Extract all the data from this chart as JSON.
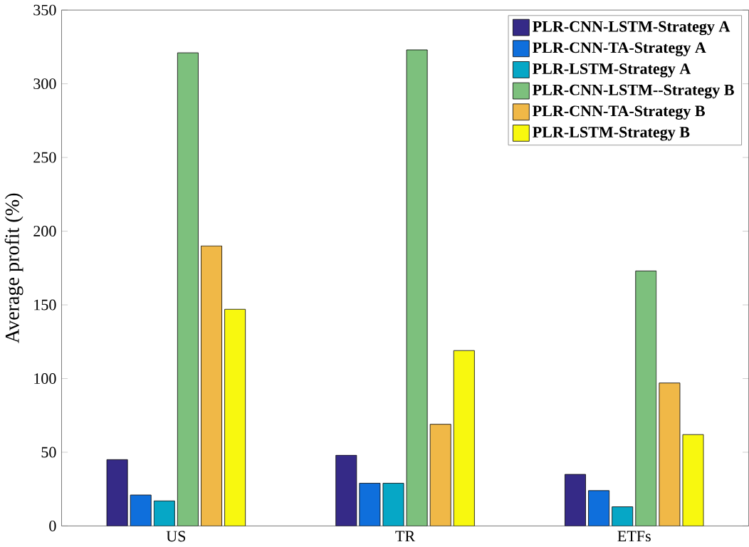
{
  "chart_data": {
    "type": "bar",
    "ylabel": "Average profit (%)",
    "categories": [
      "US",
      "TR",
      "ETFs"
    ],
    "ylim": [
      0,
      350
    ],
    "yticks": [
      0,
      50,
      100,
      150,
      200,
      250,
      300,
      350
    ],
    "legend": "top right",
    "grid": false,
    "series": [
      {
        "name": "PLR-CNN-LSTM-Strategy A",
        "color": "#352a87",
        "values": [
          45,
          48,
          35
        ]
      },
      {
        "name": "PLR-CNN-TA-Strategy A",
        "color": "#0f6fdc",
        "values": [
          21,
          29,
          24
        ]
      },
      {
        "name": "PLR-LSTM-Strategy A",
        "color": "#06a7c6",
        "values": [
          17,
          29,
          13
        ]
      },
      {
        "name": "PLR-CNN-LSTM--Strategy B",
        "color": "#7dc07d",
        "values": [
          321,
          323,
          173
        ]
      },
      {
        "name": "PLR-CNN-TA-Strategy B",
        "color": "#f0b847",
        "values": [
          190,
          69,
          97
        ]
      },
      {
        "name": "PLR-LSTM-Strategy B",
        "color": "#f8f80f",
        "values": [
          147,
          119,
          62
        ]
      }
    ]
  }
}
